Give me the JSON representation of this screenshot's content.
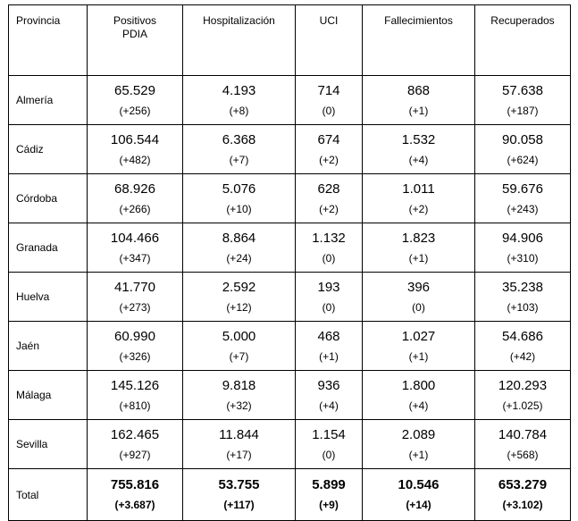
{
  "headers": [
    "Provincia",
    "Positivos PDIA",
    "Hospitalización",
    "UCI",
    "Fallecimientos",
    "Recuperados"
  ],
  "rows": [
    {
      "provincia": "Almería",
      "cells": [
        [
          "65.529",
          "(+256)"
        ],
        [
          "4.193",
          "(+8)"
        ],
        [
          "714",
          "(0)"
        ],
        [
          "868",
          "(+1)"
        ],
        [
          "57.638",
          "(+187)"
        ]
      ]
    },
    {
      "provincia": "Cádiz",
      "cells": [
        [
          "106.544",
          "(+482)"
        ],
        [
          "6.368",
          "(+7)"
        ],
        [
          "674",
          "(+2)"
        ],
        [
          "1.532",
          "(+4)"
        ],
        [
          "90.058",
          "(+624)"
        ]
      ]
    },
    {
      "provincia": "Córdoba",
      "cells": [
        [
          "68.926",
          "(+266)"
        ],
        [
          "5.076",
          "(+10)"
        ],
        [
          "628",
          "(+2)"
        ],
        [
          "1.011",
          "(+2)"
        ],
        [
          "59.676",
          "(+243)"
        ]
      ]
    },
    {
      "provincia": "Granada",
      "cells": [
        [
          "104.466",
          "(+347)"
        ],
        [
          "8.864",
          "(+24)"
        ],
        [
          "1.132",
          "(0)"
        ],
        [
          "1.823",
          "(+1)"
        ],
        [
          "94.906",
          "(+310)"
        ]
      ]
    },
    {
      "provincia": "Huelva",
      "cells": [
        [
          "41.770",
          "(+273)"
        ],
        [
          "2.592",
          "(+12)"
        ],
        [
          "193",
          "(0)"
        ],
        [
          "396",
          "(0)"
        ],
        [
          "35.238",
          "(+103)"
        ]
      ]
    },
    {
      "provincia": "Jaén",
      "cells": [
        [
          "60.990",
          "(+326)"
        ],
        [
          "5.000",
          "(+7)"
        ],
        [
          "468",
          "(+1)"
        ],
        [
          "1.027",
          "(+1)"
        ],
        [
          "54.686",
          "(+42)"
        ]
      ]
    },
    {
      "provincia": "Málaga",
      "cells": [
        [
          "145.126",
          "(+810)"
        ],
        [
          "9.818",
          "(+32)"
        ],
        [
          "936",
          "(+4)"
        ],
        [
          "1.800",
          "(+4)"
        ],
        [
          "120.293",
          "(+1.025)"
        ]
      ]
    },
    {
      "provincia": "Sevilla",
      "cells": [
        [
          "162.465",
          "(+927)"
        ],
        [
          "11.844",
          "(+17)"
        ],
        [
          "1.154",
          "(0)"
        ],
        [
          "2.089",
          "(+1)"
        ],
        [
          "140.784",
          "(+568)"
        ]
      ]
    }
  ],
  "total": {
    "provincia": "Total",
    "cells": [
      [
        "755.816",
        "(+3.687)"
      ],
      [
        "53.755",
        "(+117)"
      ],
      [
        "5.899",
        "(+9)"
      ],
      [
        "10.546",
        "(+14)"
      ],
      [
        "653.279",
        "(+3.102)"
      ]
    ]
  }
}
